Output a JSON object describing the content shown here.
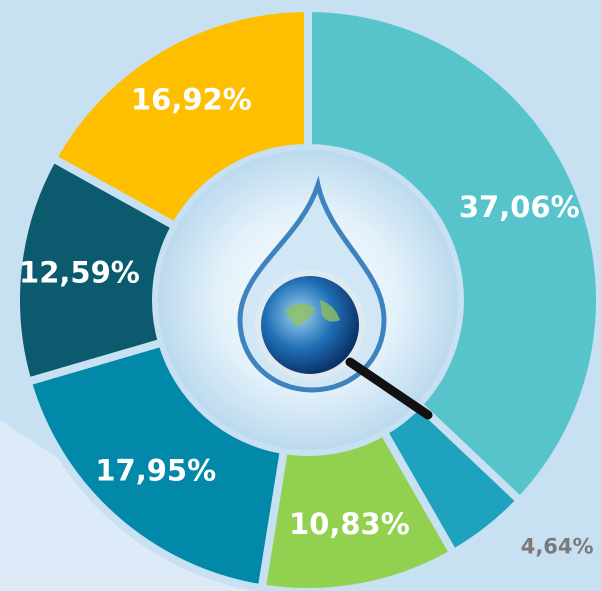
{
  "chart_data": {
    "type": "pie",
    "values": [
      37.06,
      4.64,
      10.83,
      17.95,
      12.59,
      16.92
    ],
    "value_labels": [
      "37,06%",
      "4,64%",
      "10,83%",
      "17,95%",
      "12,59%",
      "16,92%"
    ],
    "colors": [
      "#56c4ca",
      "#1fa2be",
      "#92d14f",
      "#0288a9",
      "#0b5a6d",
      "#fdbf00"
    ],
    "donut": true
  }
}
